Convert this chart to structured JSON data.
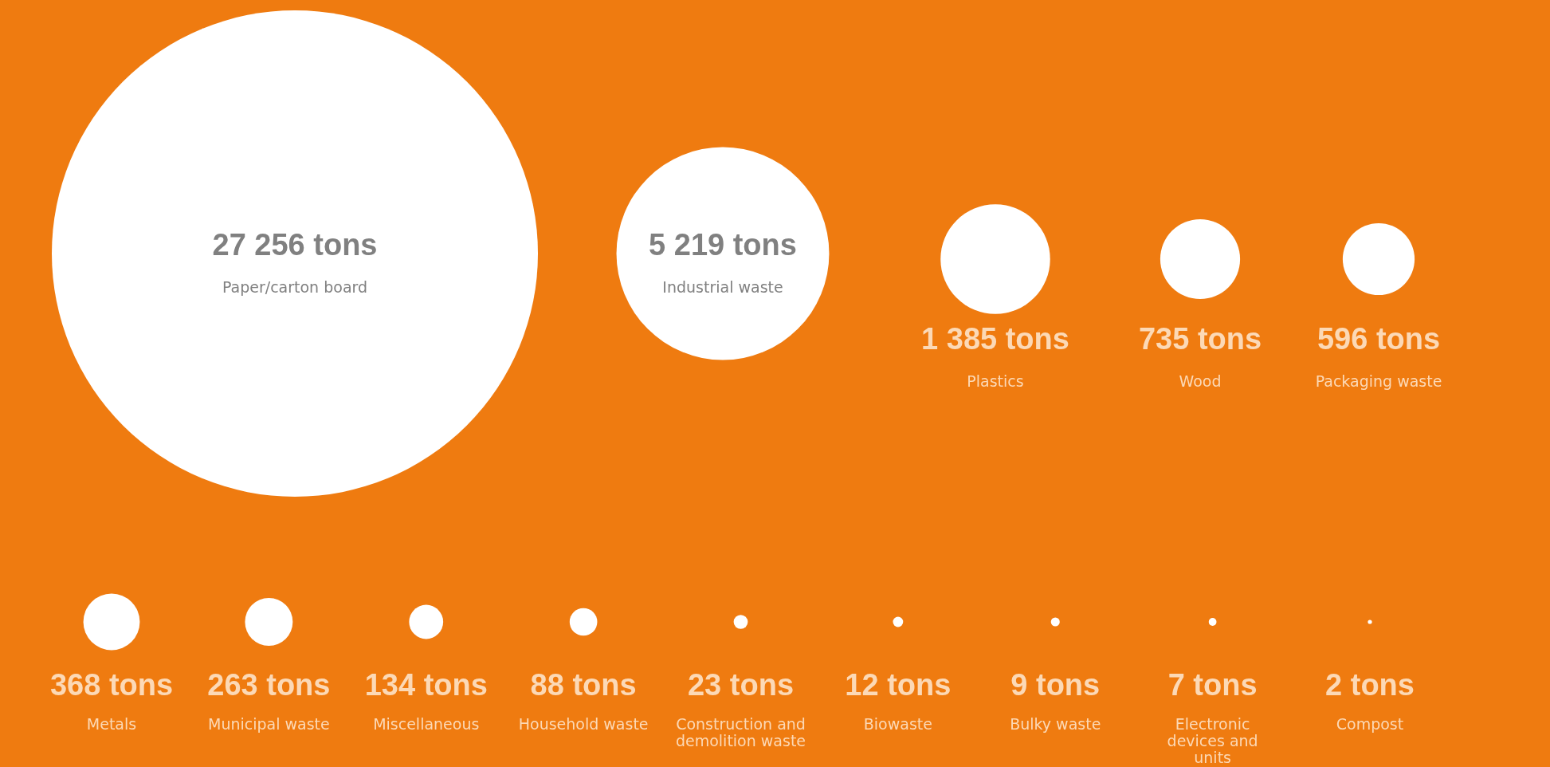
{
  "chart_data": {
    "type": "other",
    "categories": [
      "Paper/carton board",
      "Industrial waste",
      "Plastics",
      "Wood",
      "Packaging waste",
      "Metals",
      "Municipal waste",
      "Miscellaneous",
      "Household waste",
      "Construction and demolition waste",
      "Biowaste",
      "Bulky waste",
      "Electronic devices and units",
      "Compost"
    ],
    "values": [
      27256,
      5219,
      1385,
      735,
      596,
      368,
      263,
      134,
      88,
      23,
      12,
      9,
      7,
      2
    ],
    "value_labels": [
      "27 256 tons",
      "5 219 tons",
      "1 385 tons",
      "735 tons",
      "596 tons",
      "368 tons",
      "263 tons",
      "134 tons",
      "88 tons",
      "23 tons",
      "12 tons",
      "9 tons",
      "7 tons",
      "2 tons"
    ],
    "color": "#ffffff"
  }
}
